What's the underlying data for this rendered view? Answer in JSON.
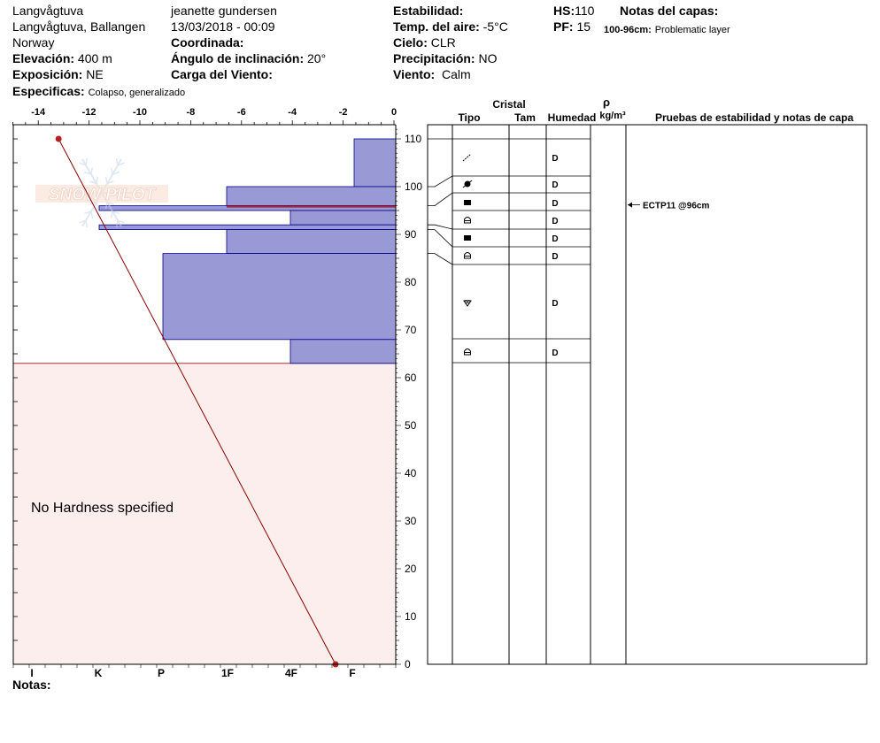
{
  "header": {
    "location": "Langvågtuva",
    "region": "Langvågtuva, Ballangen",
    "country": "Norway",
    "observer": "jeanette gundersen",
    "datetime": "13/03/2018 - 00:09",
    "elevation_label": "Elevación:",
    "elevation_value": "400 m",
    "exposure_label": "Exposición:",
    "exposure_value": "NE",
    "specifics_label": "Especificas:",
    "specifics_value": "Colapso, generalizado",
    "coord_label": "Coordinada:",
    "slope_label": "Ángulo de inclinación:",
    "slope_value": "20°",
    "wind_load_label": "Carga del Viento:",
    "stability_label": "Estabilidad:",
    "air_temp_label": "Temp. del aire:",
    "air_temp_value": "-5°C",
    "sky_label": "Cielo:",
    "sky_value": "CLR",
    "precip_label": "Precipitación:",
    "precip_value": "NO",
    "wind_label": "Viento:",
    "wind_value": "Calm",
    "hs_label": "HS:",
    "hs_value": "110",
    "pf_label": "PF:",
    "pf_value": "15",
    "layer_notes_label": "Notas del capas:",
    "layer_note_depth": "100-96cm:",
    "layer_note_text": "Problematic layer"
  },
  "watermark": "SNOW PILOT",
  "no_hardness_text": "No Hardness specified",
  "notes_label": "Notas:",
  "table_headers": {
    "cristal": "Cristal",
    "tipo": "Tipo",
    "tam": "Tam",
    "humedad": "Humedad",
    "rho": "ρ",
    "density_unit": "kg/m³",
    "tests": "Pruebas de estabilidad y notas de capa"
  },
  "stability_test": "ECTP11 @96cm",
  "colors": {
    "hardness_fill": "#9999d6",
    "hardness_stroke": "#00008b",
    "temp_line": "#8b0000",
    "no_hardness_fill": "#fdeeee",
    "problem_line": "#b22222"
  },
  "chart_data": {
    "type": "snow_profile",
    "temperature_axis": {
      "label": "",
      "ticks": [
        -14,
        -12,
        -10,
        -8,
        -6,
        -4,
        -2,
        0
      ],
      "range": [
        -15,
        0
      ]
    },
    "height_axis": {
      "label": "",
      "ticks": [
        0,
        10,
        20,
        30,
        40,
        50,
        60,
        70,
        80,
        90,
        100,
        110
      ],
      "range": [
        0,
        113
      ]
    },
    "hardness_axis": {
      "ticks": [
        "I",
        "K",
        "P",
        "1F",
        "4F",
        "F"
      ]
    },
    "hardness_layers": [
      {
        "top": 110,
        "bottom": 100,
        "hardness_label": "F"
      },
      {
        "top": 100,
        "bottom": 96,
        "hardness_label": "1F"
      },
      {
        "top": 96,
        "bottom": 95,
        "hardness_label": "K"
      },
      {
        "top": 95,
        "bottom": 92,
        "hardness_label": "4F"
      },
      {
        "top": 92,
        "bottom": 91,
        "hardness_label": "K"
      },
      {
        "top": 91,
        "bottom": 86,
        "hardness_label": "1F"
      },
      {
        "top": 86,
        "bottom": 68,
        "hardness_label": "P"
      },
      {
        "top": 68,
        "bottom": 63,
        "hardness_label": "4F"
      }
    ],
    "temperature_profile": [
      {
        "height": 110,
        "temp": -13.2
      },
      {
        "height": 0,
        "temp": -2.3
      }
    ],
    "problem_layer_height": 96,
    "layers": [
      {
        "top": 110,
        "bottom": 100,
        "grain": "precipitation-particles",
        "moisture": "D"
      },
      {
        "top": 100,
        "bottom": 96,
        "grain": "surface-hoar",
        "moisture": "D"
      },
      {
        "top": 96,
        "bottom": 92,
        "grain": "melt-freeze-crust",
        "moisture": "D"
      },
      {
        "top": 92,
        "bottom": 91,
        "grain": "faceted-crystals",
        "moisture": "D"
      },
      {
        "top": 91,
        "bottom": 86,
        "grain": "melt-freeze-crust",
        "moisture": "D"
      },
      {
        "top": 86,
        "bottom": 63,
        "grain": "faceted-crystals",
        "moisture": "D"
      }
    ],
    "grain_rows": [
      {
        "height": 106,
        "icon": "decomposing-particles-icon",
        "moisture": "D"
      },
      {
        "height": 98,
        "icon": "surface-hoar-icon",
        "moisture": "D"
      },
      {
        "height": 94.3,
        "icon": "melt-freeze-crust-icon",
        "moisture": "D"
      },
      {
        "height": 90.6,
        "icon": "faceted-crystals-icon",
        "moisture": "D"
      },
      {
        "height": 86.9,
        "icon": "melt-freeze-crust-icon",
        "moisture": "D"
      },
      {
        "height": 83.2,
        "icon": "faceted-crystals-icon",
        "moisture": "D"
      },
      {
        "height": 73.5,
        "icon": "rounding-facets-icon",
        "moisture": "D"
      },
      {
        "height": 65.5,
        "icon": "faceted-crystals-icon",
        "moisture": "D"
      }
    ]
  }
}
